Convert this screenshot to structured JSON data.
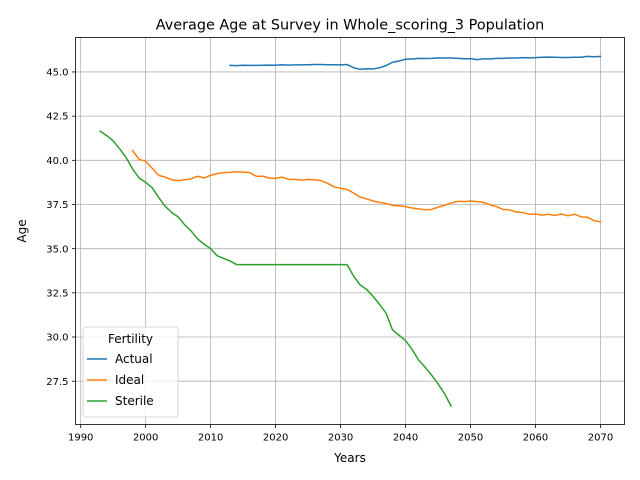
{
  "chart_data": {
    "type": "line",
    "title": "Average Age at Survey in Whole_scoring_3 Population",
    "xlabel": "Years",
    "ylabel": "Age",
    "xlim": [
      1989.2,
      2073.7
    ],
    "ylim": [
      25.05,
      46.95
    ],
    "x_ticks": [
      1990,
      2000,
      2010,
      2020,
      2030,
      2040,
      2050,
      2060,
      2070
    ],
    "x_tick_labels": [
      "1990",
      "2000",
      "2010",
      "2020",
      "2030",
      "2040",
      "2050",
      "2060",
      "2070"
    ],
    "y_ticks": [
      27.5,
      30.0,
      32.5,
      35.0,
      37.5,
      40.0,
      42.5,
      45.0
    ],
    "y_tick_labels": [
      "27.5",
      "30.0",
      "32.5",
      "35.0",
      "37.5",
      "40.0",
      "42.5",
      "45.0"
    ],
    "grid": true,
    "legend": {
      "title": "Fertility",
      "placement": "lower-left"
    },
    "series": [
      {
        "name": "Actual",
        "color": "#1f77b4",
        "x": [
          2013,
          2014,
          2015,
          2016,
          2017,
          2018,
          2019,
          2020,
          2021,
          2022,
          2023,
          2024,
          2025,
          2026,
          2027,
          2028,
          2029,
          2030,
          2031,
          2032,
          2033,
          2034,
          2035,
          2036,
          2037,
          2038,
          2039,
          2040,
          2041,
          2042,
          2043,
          2044,
          2045,
          2046,
          2047,
          2048,
          2049,
          2050,
          2051,
          2052,
          2053,
          2054,
          2055,
          2056,
          2057,
          2058,
          2059,
          2060,
          2061,
          2062,
          2063,
          2064,
          2065,
          2066,
          2067,
          2068,
          2069,
          2070
        ],
        "y": [
          45.37,
          45.36,
          45.38,
          45.37,
          45.37,
          45.38,
          45.39,
          45.38,
          45.41,
          45.39,
          45.4,
          45.4,
          45.41,
          45.42,
          45.42,
          45.41,
          45.41,
          45.4,
          45.42,
          45.24,
          45.15,
          45.18,
          45.17,
          45.24,
          45.36,
          45.55,
          45.62,
          45.72,
          45.73,
          45.77,
          45.76,
          45.77,
          45.8,
          45.79,
          45.79,
          45.77,
          45.75,
          45.75,
          45.7,
          45.74,
          45.74,
          45.77,
          45.77,
          45.79,
          45.79,
          45.81,
          45.8,
          45.81,
          45.83,
          45.84,
          45.83,
          45.82,
          45.82,
          45.83,
          45.83,
          45.88,
          45.86,
          45.88
        ]
      },
      {
        "name": "Ideal",
        "color": "#ff7f0e",
        "x": [
          1998,
          1999,
          2000,
          2001,
          2002,
          2003,
          2004,
          2005,
          2006,
          2007,
          2008,
          2009,
          2010,
          2011,
          2012,
          2013,
          2014,
          2015,
          2016,
          2017,
          2018,
          2019,
          2020,
          2021,
          2022,
          2023,
          2024,
          2025,
          2026,
          2027,
          2028,
          2029,
          2030,
          2031,
          2032,
          2033,
          2034,
          2035,
          2036,
          2037,
          2038,
          2039,
          2040,
          2041,
          2042,
          2043,
          2044,
          2045,
          2046,
          2047,
          2048,
          2049,
          2050,
          2051,
          2052,
          2053,
          2054,
          2055,
          2056,
          2057,
          2058,
          2059,
          2060,
          2061,
          2062,
          2063,
          2064,
          2065,
          2066,
          2067,
          2068,
          2069,
          2070
        ],
        "y": [
          40.55,
          40.05,
          39.95,
          39.55,
          39.15,
          39.05,
          38.9,
          38.85,
          38.9,
          38.95,
          39.1,
          39.0,
          39.15,
          39.25,
          39.3,
          39.32,
          39.35,
          39.33,
          39.31,
          39.1,
          39.1,
          39.0,
          38.98,
          39.05,
          38.92,
          38.92,
          38.88,
          38.92,
          38.9,
          38.85,
          38.7,
          38.5,
          38.42,
          38.35,
          38.15,
          37.92,
          37.82,
          37.7,
          37.62,
          37.55,
          37.45,
          37.42,
          37.38,
          37.3,
          37.25,
          37.2,
          37.22,
          37.35,
          37.45,
          37.58,
          37.68,
          37.66,
          37.7,
          37.66,
          37.62,
          37.48,
          37.38,
          37.22,
          37.2,
          37.08,
          37.05,
          36.95,
          36.96,
          36.9,
          36.95,
          36.88,
          36.96,
          36.86,
          36.95,
          36.8,
          36.78,
          36.58,
          36.52
        ]
      },
      {
        "name": "Sterile",
        "color": "#2ca02c",
        "x": [
          1993,
          1994,
          1995,
          1996,
          1997,
          1998,
          1999,
          2000,
          2001,
          2002,
          2003,
          2004,
          2005,
          2006,
          2007,
          2008,
          2009,
          2010,
          2011,
          2012,
          2013,
          2014,
          2015,
          2016,
          2017,
          2018,
          2019,
          2020,
          2021,
          2022,
          2023,
          2024,
          2025,
          2026,
          2027,
          2028,
          2029,
          2030,
          2031,
          2032,
          2033,
          2034,
          2035,
          2036,
          2037,
          2038,
          2039,
          2040,
          2041,
          2042,
          2043,
          2044,
          2045,
          2046,
          2047
        ],
        "y": [
          41.65,
          41.4,
          41.1,
          40.65,
          40.15,
          39.5,
          39.0,
          38.75,
          38.45,
          37.9,
          37.4,
          37.05,
          36.8,
          36.35,
          36.0,
          35.55,
          35.25,
          35.0,
          34.6,
          34.45,
          34.3,
          34.1,
          34.1,
          34.1,
          34.1,
          34.1,
          34.1,
          34.1,
          34.1,
          34.1,
          34.1,
          34.1,
          34.1,
          34.1,
          34.1,
          34.1,
          34.1,
          34.1,
          34.1,
          33.45,
          32.95,
          32.7,
          32.3,
          31.85,
          31.35,
          30.4,
          30.1,
          29.8,
          29.3,
          28.7,
          28.3,
          27.85,
          27.35,
          26.8,
          26.1
        ]
      }
    ]
  }
}
